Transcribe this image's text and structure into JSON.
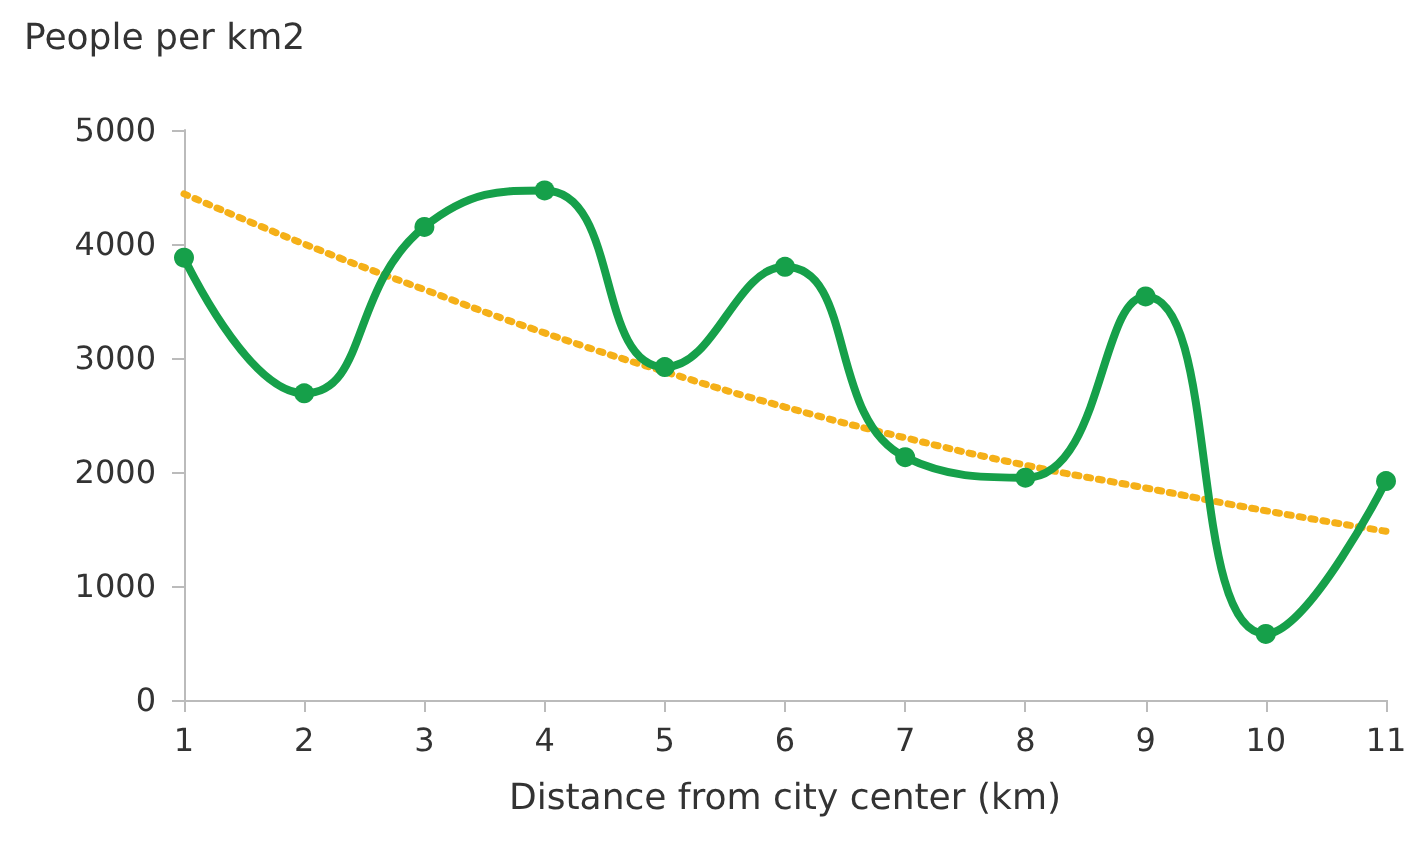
{
  "chart_data": {
    "type": "line",
    "ylabel": "People per km2",
    "xlabel": "Distance from city center (km)",
    "x": [
      1,
      2,
      3,
      4,
      5,
      6,
      7,
      8,
      9,
      10,
      11
    ],
    "series": [
      {
        "color": "#16a04a",
        "values": [
          3880,
          2690,
          4150,
          4470,
          2920,
          3800,
          2130,
          1950,
          3540,
          580,
          1920
        ],
        "marker": "circle",
        "line_style": "solid"
      },
      {
        "color": "#f5b018",
        "values": [
          4440,
          4000,
          3600,
          3220,
          2880,
          2570,
          2300,
          2060,
          1860,
          1660,
          1480
        ],
        "marker": "none",
        "line_style": "dotted"
      }
    ],
    "xlim": [
      1,
      11
    ],
    "xticks": [
      1,
      2,
      3,
      4,
      5,
      6,
      7,
      8,
      9,
      10,
      11
    ],
    "ylim": [
      0,
      5000
    ],
    "yticks": [
      0,
      1000,
      2000,
      3000,
      4000,
      5000
    ],
    "grid": false
  }
}
